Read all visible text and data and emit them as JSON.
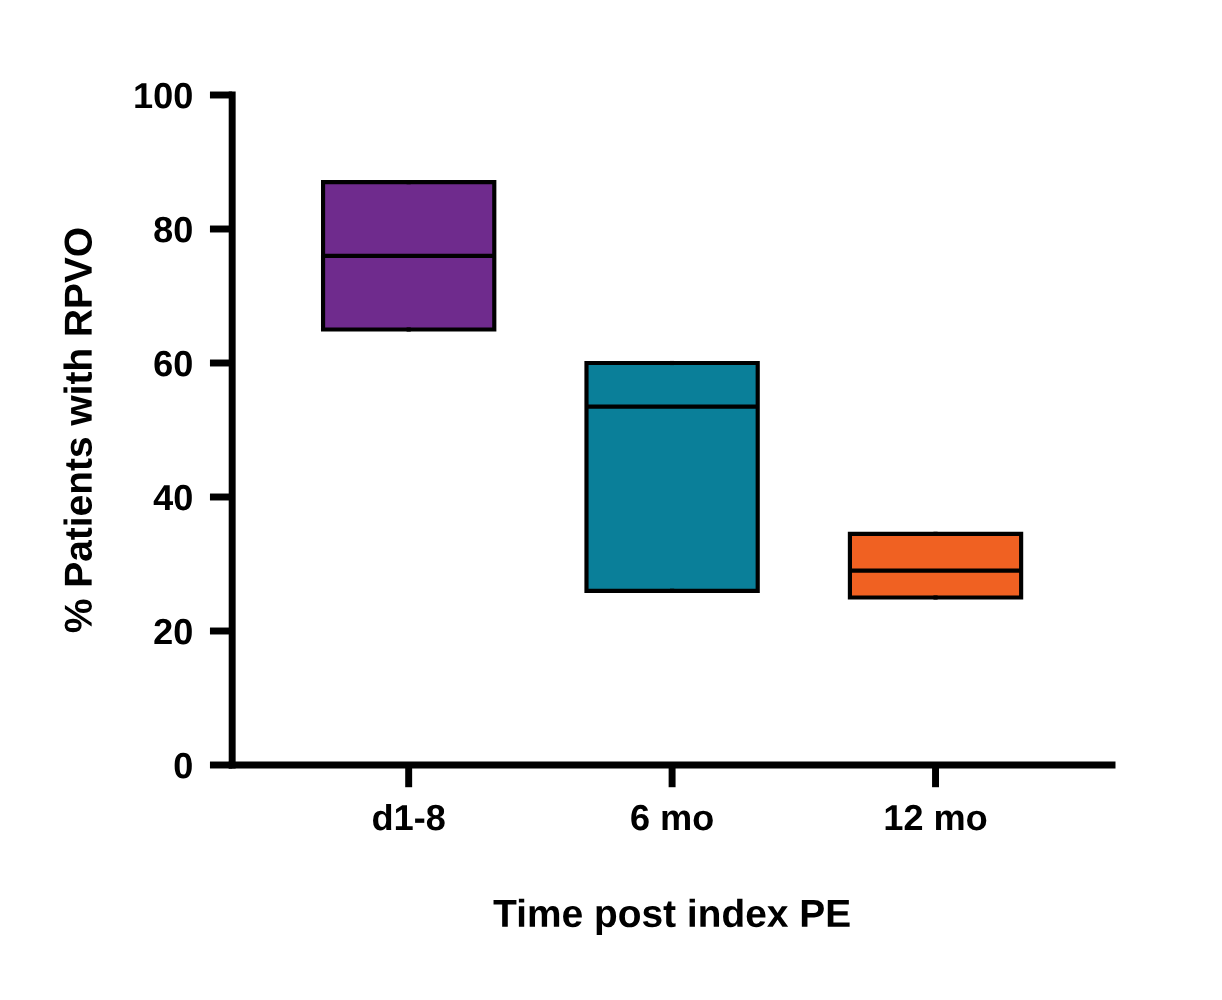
{
  "chart_data": {
    "type": "box",
    "xlabel": "Time post index PE",
    "ylabel": "% Patients with RPVO",
    "categories": [
      "d1-8",
      "6 mo",
      "12 mo"
    ],
    "boxes": [
      {
        "low": 65,
        "q1": 65,
        "median": 76,
        "q3": 87,
        "high": 87
      },
      {
        "low": 26,
        "q1": 26,
        "median": 53.5,
        "q3": 60,
        "high": 60
      },
      {
        "low": 25,
        "q1": 25,
        "median": 29,
        "q3": 34.5,
        "high": 34.5
      }
    ],
    "colors": [
      "#6f2b8d",
      "#0a7f99",
      "#f06122"
    ],
    "ylim": [
      0,
      100
    ],
    "yticks": [
      0,
      20,
      40,
      60,
      80,
      100
    ],
    "grid": false,
    "legend": false
  }
}
